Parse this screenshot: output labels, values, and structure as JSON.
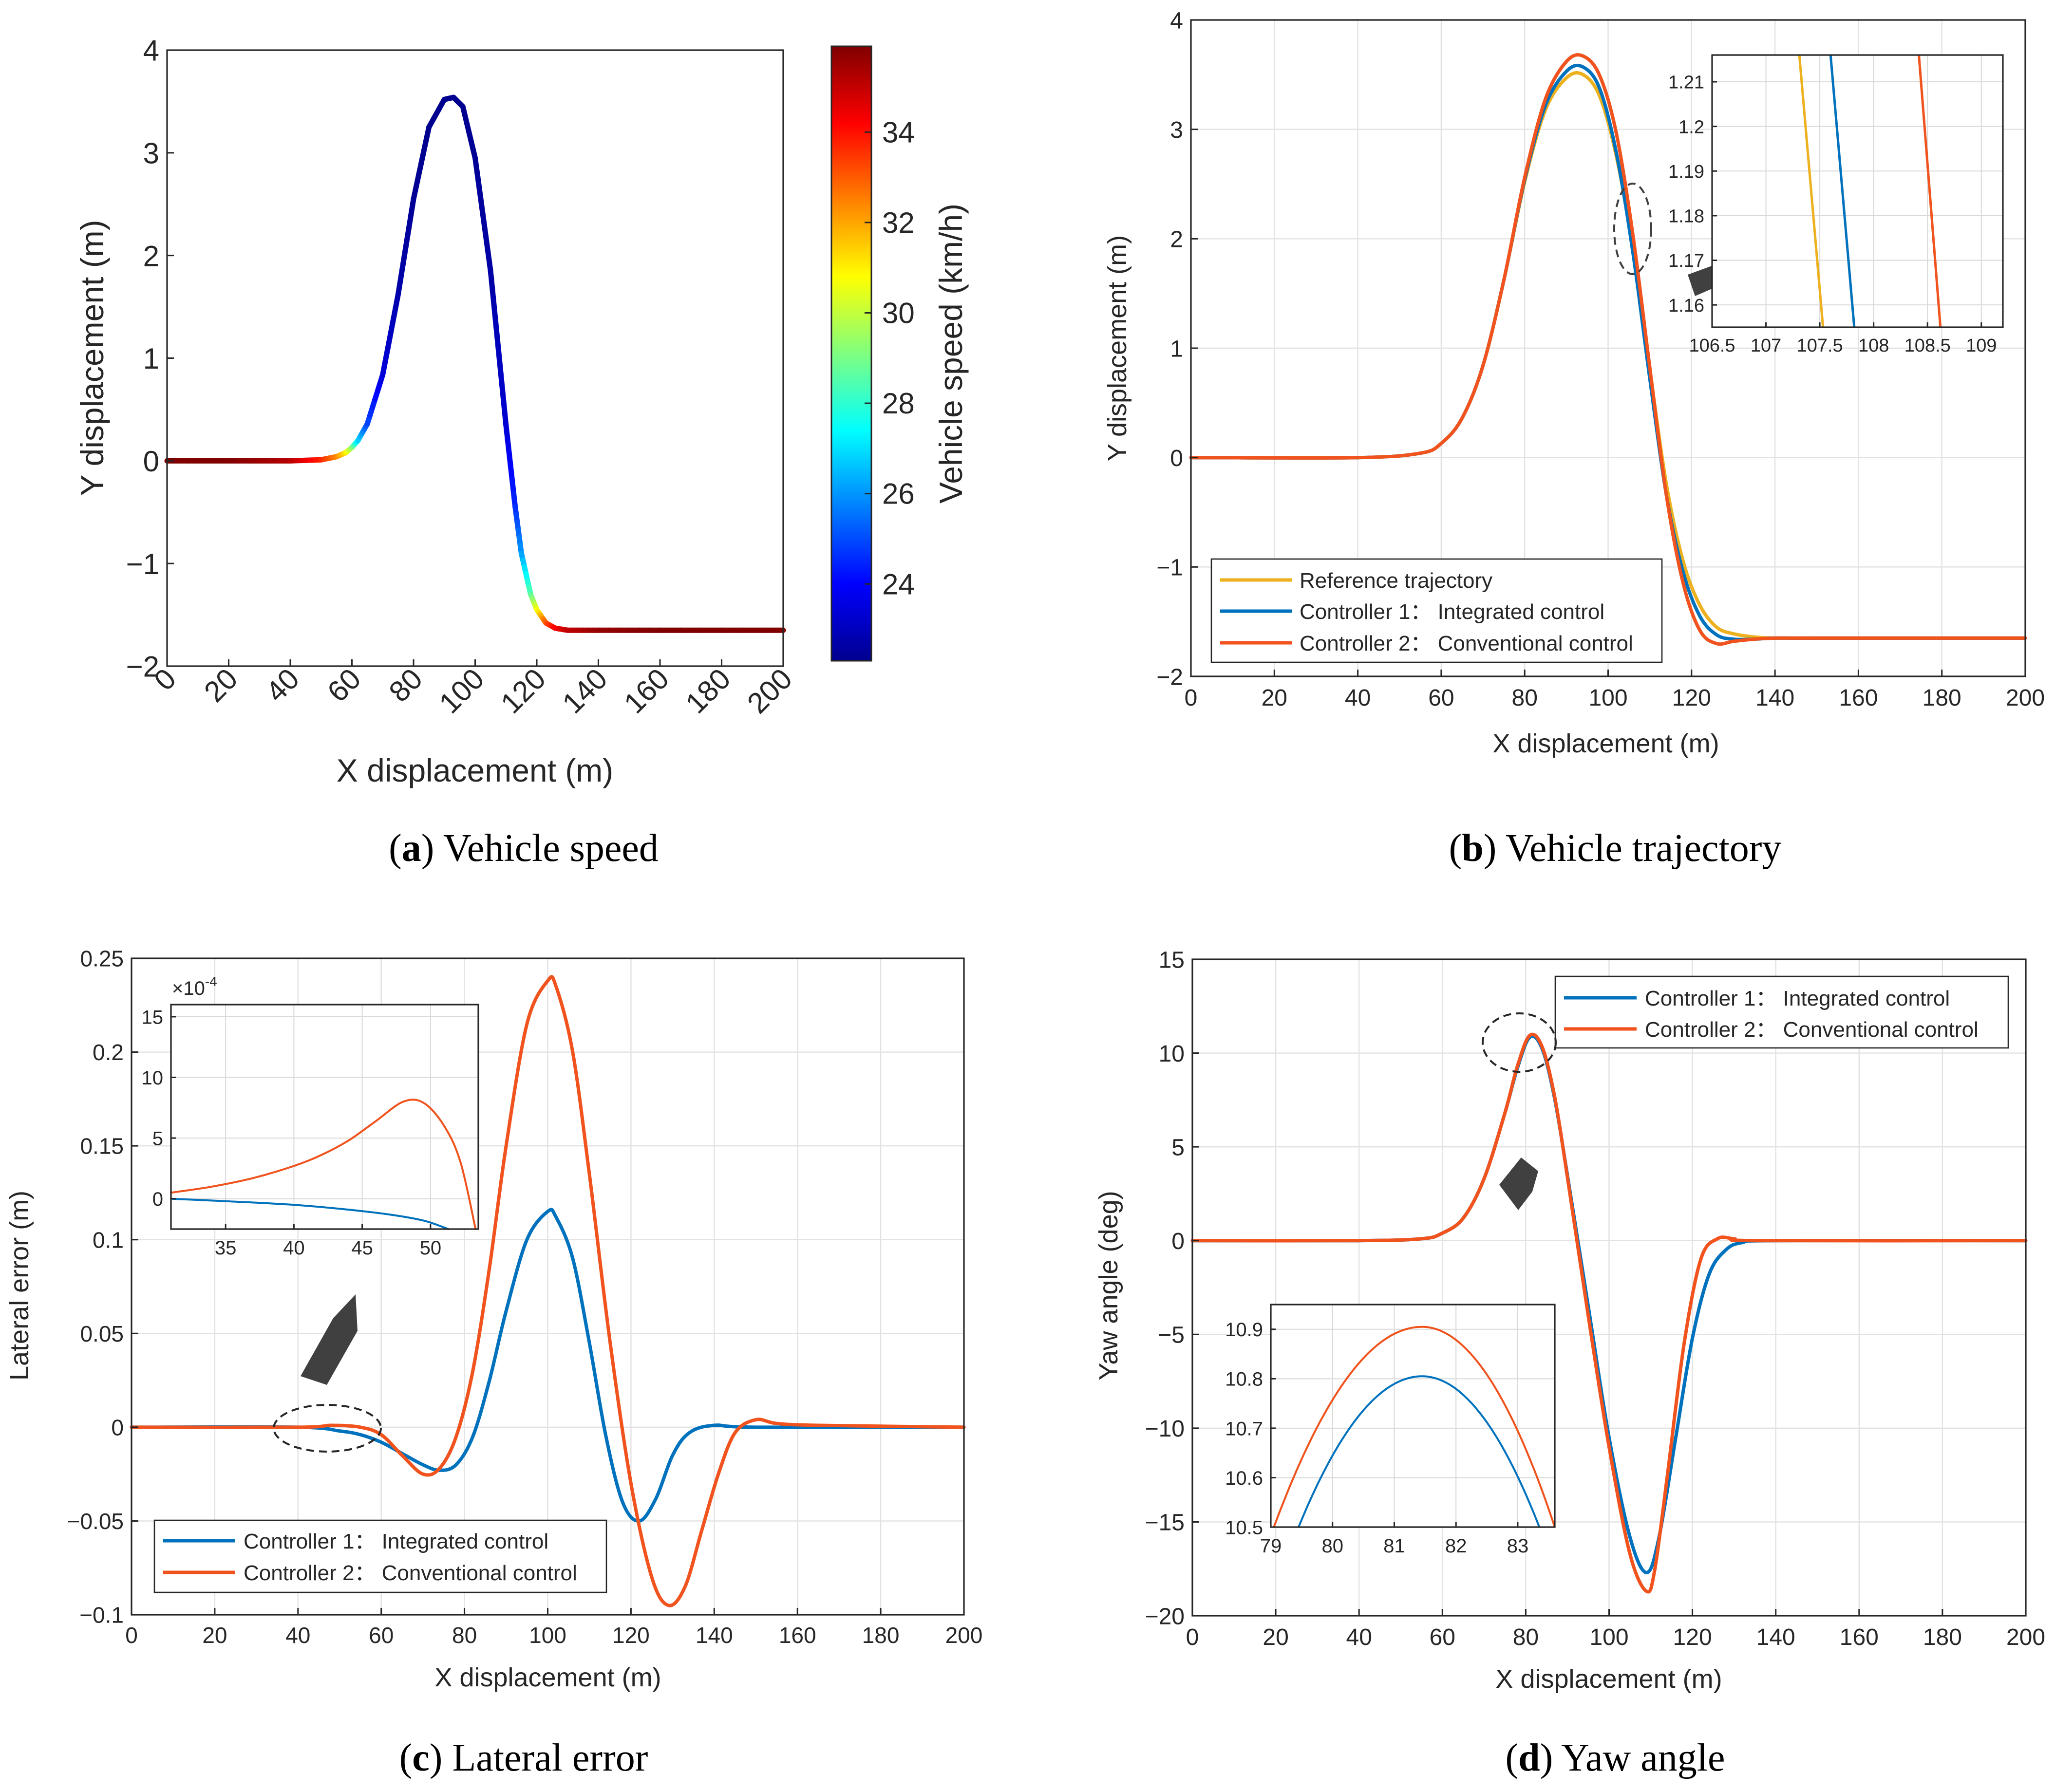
{
  "figure": {
    "colors": {
      "reference": "#EDB120",
      "controller1": "#0072BD",
      "controller2": "#F0531D",
      "arrow": "#404040",
      "axis": "#262626"
    },
    "captions": {
      "a": {
        "letter": "a",
        "text": ") Vehicle speed"
      },
      "b": {
        "letter": "b",
        "text": ") Vehicle trajectory"
      },
      "c": {
        "letter": "c",
        "text": ") Lateral error"
      },
      "d": {
        "letter": "d",
        "text": ") Yaw angle"
      }
    }
  },
  "chart_data": [
    {
      "id": "a",
      "type": "line",
      "xlabel": "X displacement (m)",
      "ylabel": "Y displacement (m)",
      "xlim": [
        0,
        200
      ],
      "ylim": [
        -2,
        4
      ],
      "xticks": [
        "0",
        "20",
        "40",
        "60",
        "80",
        "100",
        "120",
        "140",
        "160",
        "180",
        "200"
      ],
      "yticks": [
        "−2",
        "−1",
        "0",
        "1",
        "2",
        "3",
        "4"
      ],
      "grid": false,
      "colorbar": {
        "label": "Vehicle speed (km/h)",
        "range": [
          22.3,
          35.9
        ],
        "ticks": [
          "24",
          "26",
          "28",
          "30",
          "32",
          "34"
        ],
        "colormap": "jet"
      },
      "series": [
        {
          "color_by": "speed",
          "x": [
            0,
            20,
            40,
            50,
            55,
            58,
            60,
            62,
            65,
            70,
            75,
            80,
            85,
            90,
            93,
            96,
            100,
            105,
            110,
            113,
            115,
            118,
            120,
            123,
            126,
            130,
            140,
            160,
            200
          ],
          "y": [
            0,
            0,
            0,
            0.01,
            0.04,
            0.08,
            0.13,
            0.2,
            0.36,
            0.84,
            1.62,
            2.55,
            3.25,
            3.52,
            3.54,
            3.45,
            2.95,
            1.85,
            0.35,
            -0.45,
            -0.9,
            -1.3,
            -1.45,
            -1.58,
            -1.63,
            -1.65,
            -1.65,
            -1.65,
            -1.65
          ],
          "speed": [
            35.9,
            35.9,
            35.2,
            33.8,
            32.5,
            31.2,
            29.5,
            27.0,
            25.0,
            23.5,
            22.9,
            22.6,
            22.5,
            22.5,
            22.5,
            22.5,
            22.6,
            22.8,
            23.4,
            24.5,
            26.0,
            28.5,
            30.5,
            33.0,
            34.2,
            35.0,
            35.6,
            35.9,
            35.9
          ]
        }
      ]
    },
    {
      "id": "b",
      "type": "line",
      "xlabel": "X displacement (m)",
      "ylabel": "Y displacement (m)",
      "xlim": [
        0,
        200
      ],
      "ylim": [
        -2,
        4
      ],
      "xticks": [
        "0",
        "20",
        "40",
        "60",
        "80",
        "100",
        "120",
        "140",
        "160",
        "180",
        "200"
      ],
      "yticks": [
        "−2",
        "−1",
        "0",
        "1",
        "2",
        "3",
        "4"
      ],
      "grid": true,
      "legend": {
        "position": "bottom-left"
      },
      "series": [
        {
          "name": "Reference trajectory",
          "color": "#EDB120",
          "x": [
            0,
            40,
            55,
            60,
            65,
            70,
            75,
            80,
            85,
            90,
            94,
            98,
            102,
            106,
            110,
            114,
            118,
            122,
            126,
            130,
            135,
            140,
            150,
            200
          ],
          "y": [
            0,
            0,
            0.04,
            0.13,
            0.36,
            0.84,
            1.62,
            2.52,
            3.18,
            3.47,
            3.5,
            3.3,
            2.75,
            1.9,
            0.8,
            -0.25,
            -0.95,
            -1.35,
            -1.55,
            -1.61,
            -1.64,
            -1.65,
            -1.65,
            -1.65
          ]
        },
        {
          "name": "Controller 1： Integrated control",
          "color": "#0072BD",
          "x": [
            0,
            40,
            55,
            60,
            65,
            70,
            75,
            80,
            85,
            90,
            94,
            98,
            102,
            106,
            110,
            114,
            118,
            122,
            126,
            130,
            135,
            140,
            150,
            200
          ],
          "y": [
            0,
            0,
            0.04,
            0.13,
            0.36,
            0.84,
            1.62,
            2.54,
            3.22,
            3.53,
            3.57,
            3.37,
            2.78,
            1.86,
            0.72,
            -0.35,
            -1.05,
            -1.45,
            -1.62,
            -1.66,
            -1.66,
            -1.65,
            -1.65,
            -1.65
          ]
        },
        {
          "name": "Controller 2： Conventional control",
          "color": "#F0531D",
          "x": [
            0,
            40,
            55,
            60,
            65,
            70,
            75,
            80,
            85,
            90,
            94,
            98,
            102,
            106,
            110,
            114,
            118,
            122,
            126,
            130,
            135,
            140,
            150,
            200
          ],
          "y": [
            0,
            0,
            0.04,
            0.13,
            0.36,
            0.84,
            1.62,
            2.56,
            3.28,
            3.62,
            3.67,
            3.49,
            2.96,
            2.02,
            0.82,
            -0.35,
            -1.15,
            -1.58,
            -1.7,
            -1.68,
            -1.66,
            -1.65,
            -1.65,
            -1.65
          ]
        }
      ],
      "inset": {
        "xlim": [
          106.5,
          109.2
        ],
        "ylim": [
          1.155,
          1.216
        ],
        "xticks": [
          "106.5",
          "107",
          "107.5",
          "108",
          "108.5",
          "109"
        ],
        "yticks": [
          "1.16",
          "1.17",
          "1.18",
          "1.19",
          "1.2",
          "1.21"
        ],
        "series": [
          {
            "color": "#EDB120",
            "x": [
              107.31,
              107.53
            ],
            "y": [
              1.216,
              1.155
            ]
          },
          {
            "color": "#0072BD",
            "x": [
              107.6,
              107.82
            ],
            "y": [
              1.216,
              1.155
            ]
          },
          {
            "color": "#F0531D",
            "x": [
              108.42,
              108.62
            ],
            "y": [
              1.216,
              1.155
            ]
          }
        ]
      }
    },
    {
      "id": "c",
      "type": "line",
      "xlabel": "X displacement (m)",
      "ylabel": "Lateral error (m)",
      "xlim": [
        0,
        200
      ],
      "ylim": [
        -0.1,
        0.25
      ],
      "xticks": [
        "0",
        "20",
        "40",
        "60",
        "80",
        "100",
        "120",
        "140",
        "160",
        "180",
        "200"
      ],
      "yticks": [
        "−0.1",
        "−0.05",
        "0",
        "0.05",
        "0.1",
        "0.15",
        "0.2",
        "0.25"
      ],
      "grid": true,
      "legend": {
        "position": "bottom-left"
      },
      "series": [
        {
          "name": "Controller 1： Integrated control",
          "color": "#0072BD",
          "x": [
            0,
            40,
            50,
            55,
            60,
            65,
            70,
            74,
            78,
            82,
            86,
            90,
            95,
            100,
            102,
            106,
            110,
            114,
            118,
            122,
            126,
            130,
            134,
            140,
            150,
            200
          ],
          "y": [
            0,
            0,
            -0.002,
            -0.004,
            -0.008,
            -0.014,
            -0.02,
            -0.023,
            -0.02,
            -0.005,
            0.025,
            0.062,
            0.1,
            0.115,
            0.112,
            0.09,
            0.045,
            -0.005,
            -0.04,
            -0.05,
            -0.038,
            -0.015,
            -0.003,
            0.001,
            0.0,
            0.0
          ]
        },
        {
          "name": "Controller 2： Conventional control",
          "color": "#F0531D",
          "x": [
            0,
            40,
            48,
            55,
            60,
            65,
            70,
            74,
            78,
            82,
            86,
            90,
            95,
            100,
            102,
            106,
            110,
            115,
            120,
            125,
            129,
            133,
            137,
            141,
            145,
            150,
            155,
            165,
            200
          ],
          "y": [
            0,
            0,
            0.001,
            0.0,
            -0.004,
            -0.015,
            -0.025,
            -0.022,
            -0.005,
            0.03,
            0.085,
            0.15,
            0.215,
            0.238,
            0.235,
            0.2,
            0.135,
            0.045,
            -0.03,
            -0.08,
            -0.095,
            -0.085,
            -0.055,
            -0.025,
            -0.003,
            0.004,
            0.002,
            0.001,
            0.0
          ]
        }
      ],
      "inset": {
        "xlim": [
          31,
          53.5
        ],
        "ylim": [
          -2.5,
          16
        ],
        "exponent_label": "×10",
        "exponent": "-4",
        "xticks": [
          "35",
          "40",
          "45",
          "50"
        ],
        "yticks": [
          "0",
          "5",
          "10",
          "15"
        ],
        "series": [
          {
            "color": "#F0531D",
            "x": [
              31,
              34,
              37,
              40,
              42,
              44,
              46,
              48,
              49.5,
              51,
              52.2,
              53.3
            ],
            "y": [
              0.5,
              1.0,
              1.7,
              2.7,
              3.6,
              4.8,
              6.4,
              8.0,
              7.9,
              6.0,
              3.0,
              -2.5
            ]
          },
          {
            "color": "#0072BD",
            "x": [
              31,
              35,
              40,
              44,
              47,
              49.5,
              51.3
            ],
            "y": [
              0,
              -0.2,
              -0.5,
              -0.9,
              -1.3,
              -1.8,
              -2.5
            ]
          }
        ]
      }
    },
    {
      "id": "d",
      "type": "line",
      "xlabel": "X displacement (m)",
      "ylabel": "Yaw angle (deg)",
      "xlim": [
        0,
        200
      ],
      "ylim": [
        -20,
        15
      ],
      "xticks": [
        "0",
        "20",
        "40",
        "60",
        "80",
        "100",
        "120",
        "140",
        "160",
        "180",
        "200"
      ],
      "yticks": [
        "−20",
        "−15",
        "−10",
        "−5",
        "0",
        "5",
        "10",
        "15"
      ],
      "grid": true,
      "legend": {
        "position": "top-right"
      },
      "series": [
        {
          "name": "Controller 1： Integrated control",
          "color": "#0072BD",
          "x": [
            0,
            40,
            55,
            60,
            65,
            70,
            75,
            78,
            81,
            84,
            87,
            90,
            95,
            100,
            105,
            109,
            112,
            116,
            120,
            124,
            128,
            132,
            140,
            200
          ],
          "y": [
            0,
            0,
            0.1,
            0.4,
            1.2,
            3.3,
            6.8,
            9.2,
            10.85,
            10.2,
            7.5,
            3.5,
            -3.5,
            -10.5,
            -15.8,
            -17.7,
            -15.8,
            -10.5,
            -5.2,
            -1.8,
            -0.5,
            -0.1,
            0,
            0
          ]
        },
        {
          "name": "Controller 2： Conventional control",
          "color": "#F0531D",
          "x": [
            0,
            40,
            55,
            60,
            65,
            70,
            75,
            78,
            81,
            84,
            87,
            90,
            95,
            100,
            105,
            109,
            111,
            114,
            118,
            122,
            126,
            130,
            136,
            200
          ],
          "y": [
            0,
            0,
            0.1,
            0.4,
            1.2,
            3.3,
            6.8,
            9.3,
            10.95,
            10.3,
            7.6,
            3.4,
            -4.0,
            -11.0,
            -16.7,
            -18.7,
            -17.5,
            -12.5,
            -5.5,
            -1.0,
            0.1,
            0.1,
            0,
            0
          ]
        }
      ],
      "inset": {
        "xlim": [
          79,
          83.6
        ],
        "ylim": [
          10.5,
          10.95
        ],
        "xticks": [
          "79",
          "80",
          "81",
          "82",
          "83"
        ],
        "yticks": [
          "10.5",
          "10.6",
          "10.7",
          "10.8",
          "10.9"
        ],
        "series": [
          {
            "color": "#F0531D",
            "peak_x": 81.45,
            "peak_y": 10.905,
            "y_at_edges": 10.5,
            "x_left": 79.05,
            "x_right": 83.6
          },
          {
            "color": "#0072BD",
            "peak_x": 81.45,
            "peak_y": 10.805,
            "y_at_edges": 10.5,
            "x_left": 79.45,
            "x_right": 83.35
          }
        ]
      }
    }
  ]
}
